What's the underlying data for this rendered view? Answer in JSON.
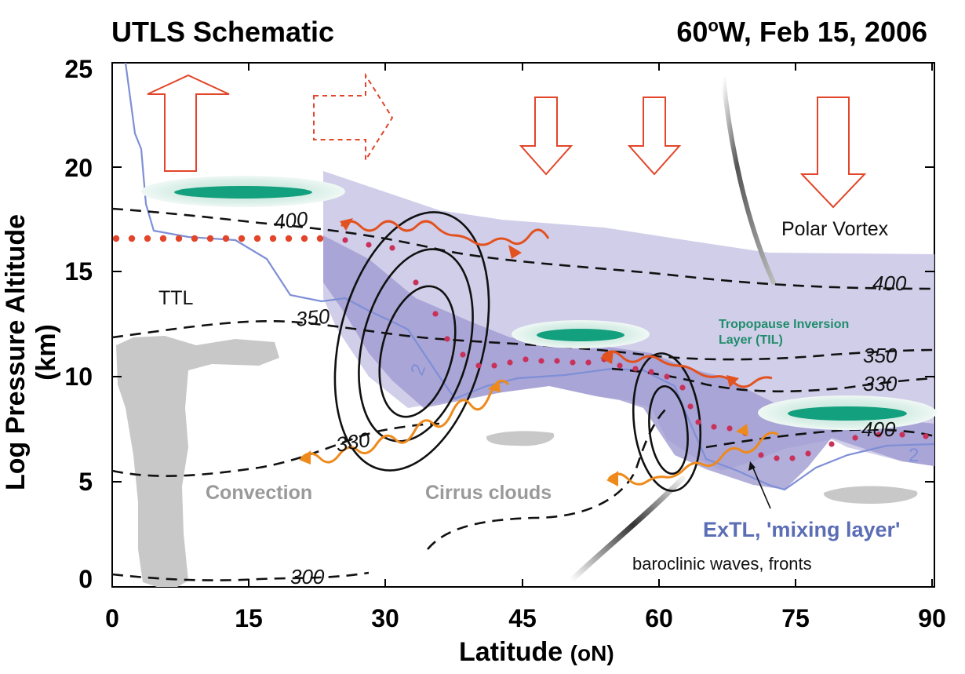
{
  "title_left": "UTLS Schematic",
  "title_right": {
    "lon": "60",
    "deg": "o",
    "rest": "W, Feb 15, 2006"
  },
  "y_axis": {
    "label": "Log Pressure Altitude (km)",
    "ticks": [
      "25",
      "20",
      "15",
      "10",
      "5",
      "0"
    ]
  },
  "x_axis": {
    "label": "Latitude",
    "unit": "(oN)",
    "ticks": [
      "0",
      "15",
      "30",
      "45",
      "60",
      "75",
      "90"
    ]
  },
  "labels": {
    "polar_vortex": "Polar Vortex",
    "ttl": "TTL",
    "til": "Tropopause Inversion\nLayer (TIL)",
    "convection": "Convection",
    "cirrus": "Cirrus clouds",
    "extl": "ExTL, 'mixing layer'",
    "baroclinic": "baroclinic waves, fronts"
  },
  "contour_labels": [
    "400",
    "400",
    "350",
    "350",
    "330",
    "330",
    "300",
    "400"
  ],
  "pv_labels": [
    "2",
    "2"
  ],
  "colors": {
    "stratosphere_fill": "#c9c6e6",
    "extl_fill": "#9f9bd1",
    "tropopause_line": "#7f8fd6",
    "dots": "#c8315a",
    "ttl_dots": "#e2452a",
    "wave_upper": "#e2521f",
    "wave_lower": "#ee8a1c",
    "arrow_outline": "#e2452a",
    "til_inner": "#13a07e",
    "cloud": "#c8c8c8",
    "extl_text": "#5b6db5",
    "til_text": "#1f8c6a"
  }
}
